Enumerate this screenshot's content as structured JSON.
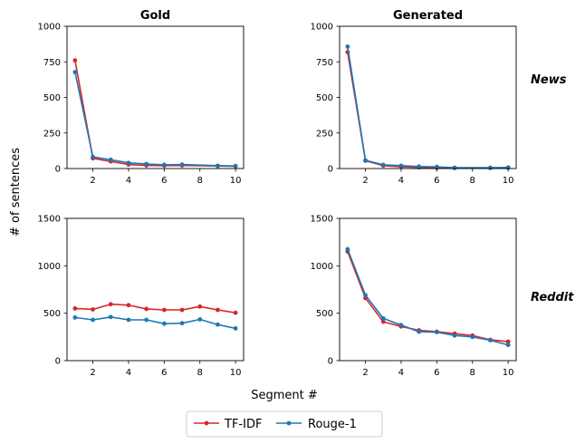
{
  "chart_data": {
    "type": "line",
    "shared_xlabel": "Segment #",
    "shared_ylabel": "# of sentences",
    "row_labels": [
      "News",
      "Reddit"
    ],
    "legend": {
      "placement": "bottom-center",
      "entries": [
        {
          "name": "TF-IDF",
          "color": "#d62728"
        },
        {
          "name": "Rouge-1",
          "color": "#1f77b4"
        }
      ]
    },
    "series_colors": {
      "TF-IDF": "#d62728",
      "Rouge-1": "#1f77b4"
    },
    "x_ticks": [
      2,
      4,
      6,
      8,
      10
    ],
    "xlim": [
      0.55,
      10.45
    ],
    "panels": [
      {
        "id": "news-gold",
        "title": "Gold",
        "row": 0,
        "col": 0,
        "ylim": [
          0,
          1000
        ],
        "y_ticks": [
          0,
          250,
          500,
          750,
          1000
        ],
        "series": [
          {
            "name": "TF-IDF",
            "x": [
              1,
              2,
              3,
              4,
              5,
              6,
              7,
              9,
              10
            ],
            "values": [
              760,
              72,
              50,
              28,
              22,
              20,
              22,
              18,
              16
            ]
          },
          {
            "name": "Rouge-1",
            "x": [
              1,
              2,
              3,
              4,
              5,
              6,
              7,
              9,
              10
            ],
            "values": [
              678,
              82,
              62,
              40,
              32,
              26,
              28,
              20,
              18
            ]
          }
        ]
      },
      {
        "id": "news-generated",
        "title": "Generated",
        "row": 0,
        "col": 1,
        "ylim": [
          0,
          1000
        ],
        "y_ticks": [
          0,
          250,
          500,
          750,
          1000
        ],
        "series": [
          {
            "name": "TF-IDF",
            "x": [
              1,
              2,
              3,
              4,
              5,
              6,
              7,
              9,
              10
            ],
            "values": [
              818,
              55,
              20,
              12,
              8,
              6,
              4,
              4,
              6
            ]
          },
          {
            "name": "Rouge-1",
            "x": [
              1,
              2,
              3,
              4,
              5,
              6,
              7,
              9,
              10
            ],
            "values": [
              857,
              58,
              26,
              20,
              14,
              12,
              6,
              6,
              8
            ]
          }
        ]
      },
      {
        "id": "reddit-gold",
        "title": "",
        "row": 1,
        "col": 0,
        "ylim": [
          0,
          1500
        ],
        "y_ticks": [
          0,
          500,
          1000,
          1500
        ],
        "series": [
          {
            "name": "TF-IDF",
            "x": [
              1,
              2,
              3,
              4,
              5,
              6,
              7,
              8,
              9,
              10
            ],
            "values": [
              550,
              540,
              595,
              585,
              545,
              535,
              535,
              570,
              535,
              505
            ]
          },
          {
            "name": "Rouge-1",
            "x": [
              1,
              2,
              3,
              4,
              5,
              6,
              7,
              8,
              9,
              10
            ],
            "values": [
              455,
              430,
              460,
              430,
              430,
              390,
              395,
              435,
              380,
              340
            ]
          }
        ]
      },
      {
        "id": "reddit-generated",
        "title": "",
        "row": 1,
        "col": 1,
        "ylim": [
          0,
          1500
        ],
        "y_ticks": [
          0,
          500,
          1000,
          1500
        ],
        "series": [
          {
            "name": "TF-IDF",
            "x": [
              1,
              2,
              3,
              4,
              5,
              6,
              7,
              8,
              9,
              10
            ],
            "values": [
              1150,
              660,
              410,
              360,
              320,
              305,
              285,
              265,
              220,
              200
            ]
          },
          {
            "name": "Rouge-1",
            "x": [
              1,
              2,
              3,
              4,
              5,
              6,
              7,
              8,
              9,
              10
            ],
            "values": [
              1175,
              690,
              445,
              375,
              305,
              300,
              265,
              250,
              215,
              165
            ]
          }
        ]
      }
    ]
  }
}
